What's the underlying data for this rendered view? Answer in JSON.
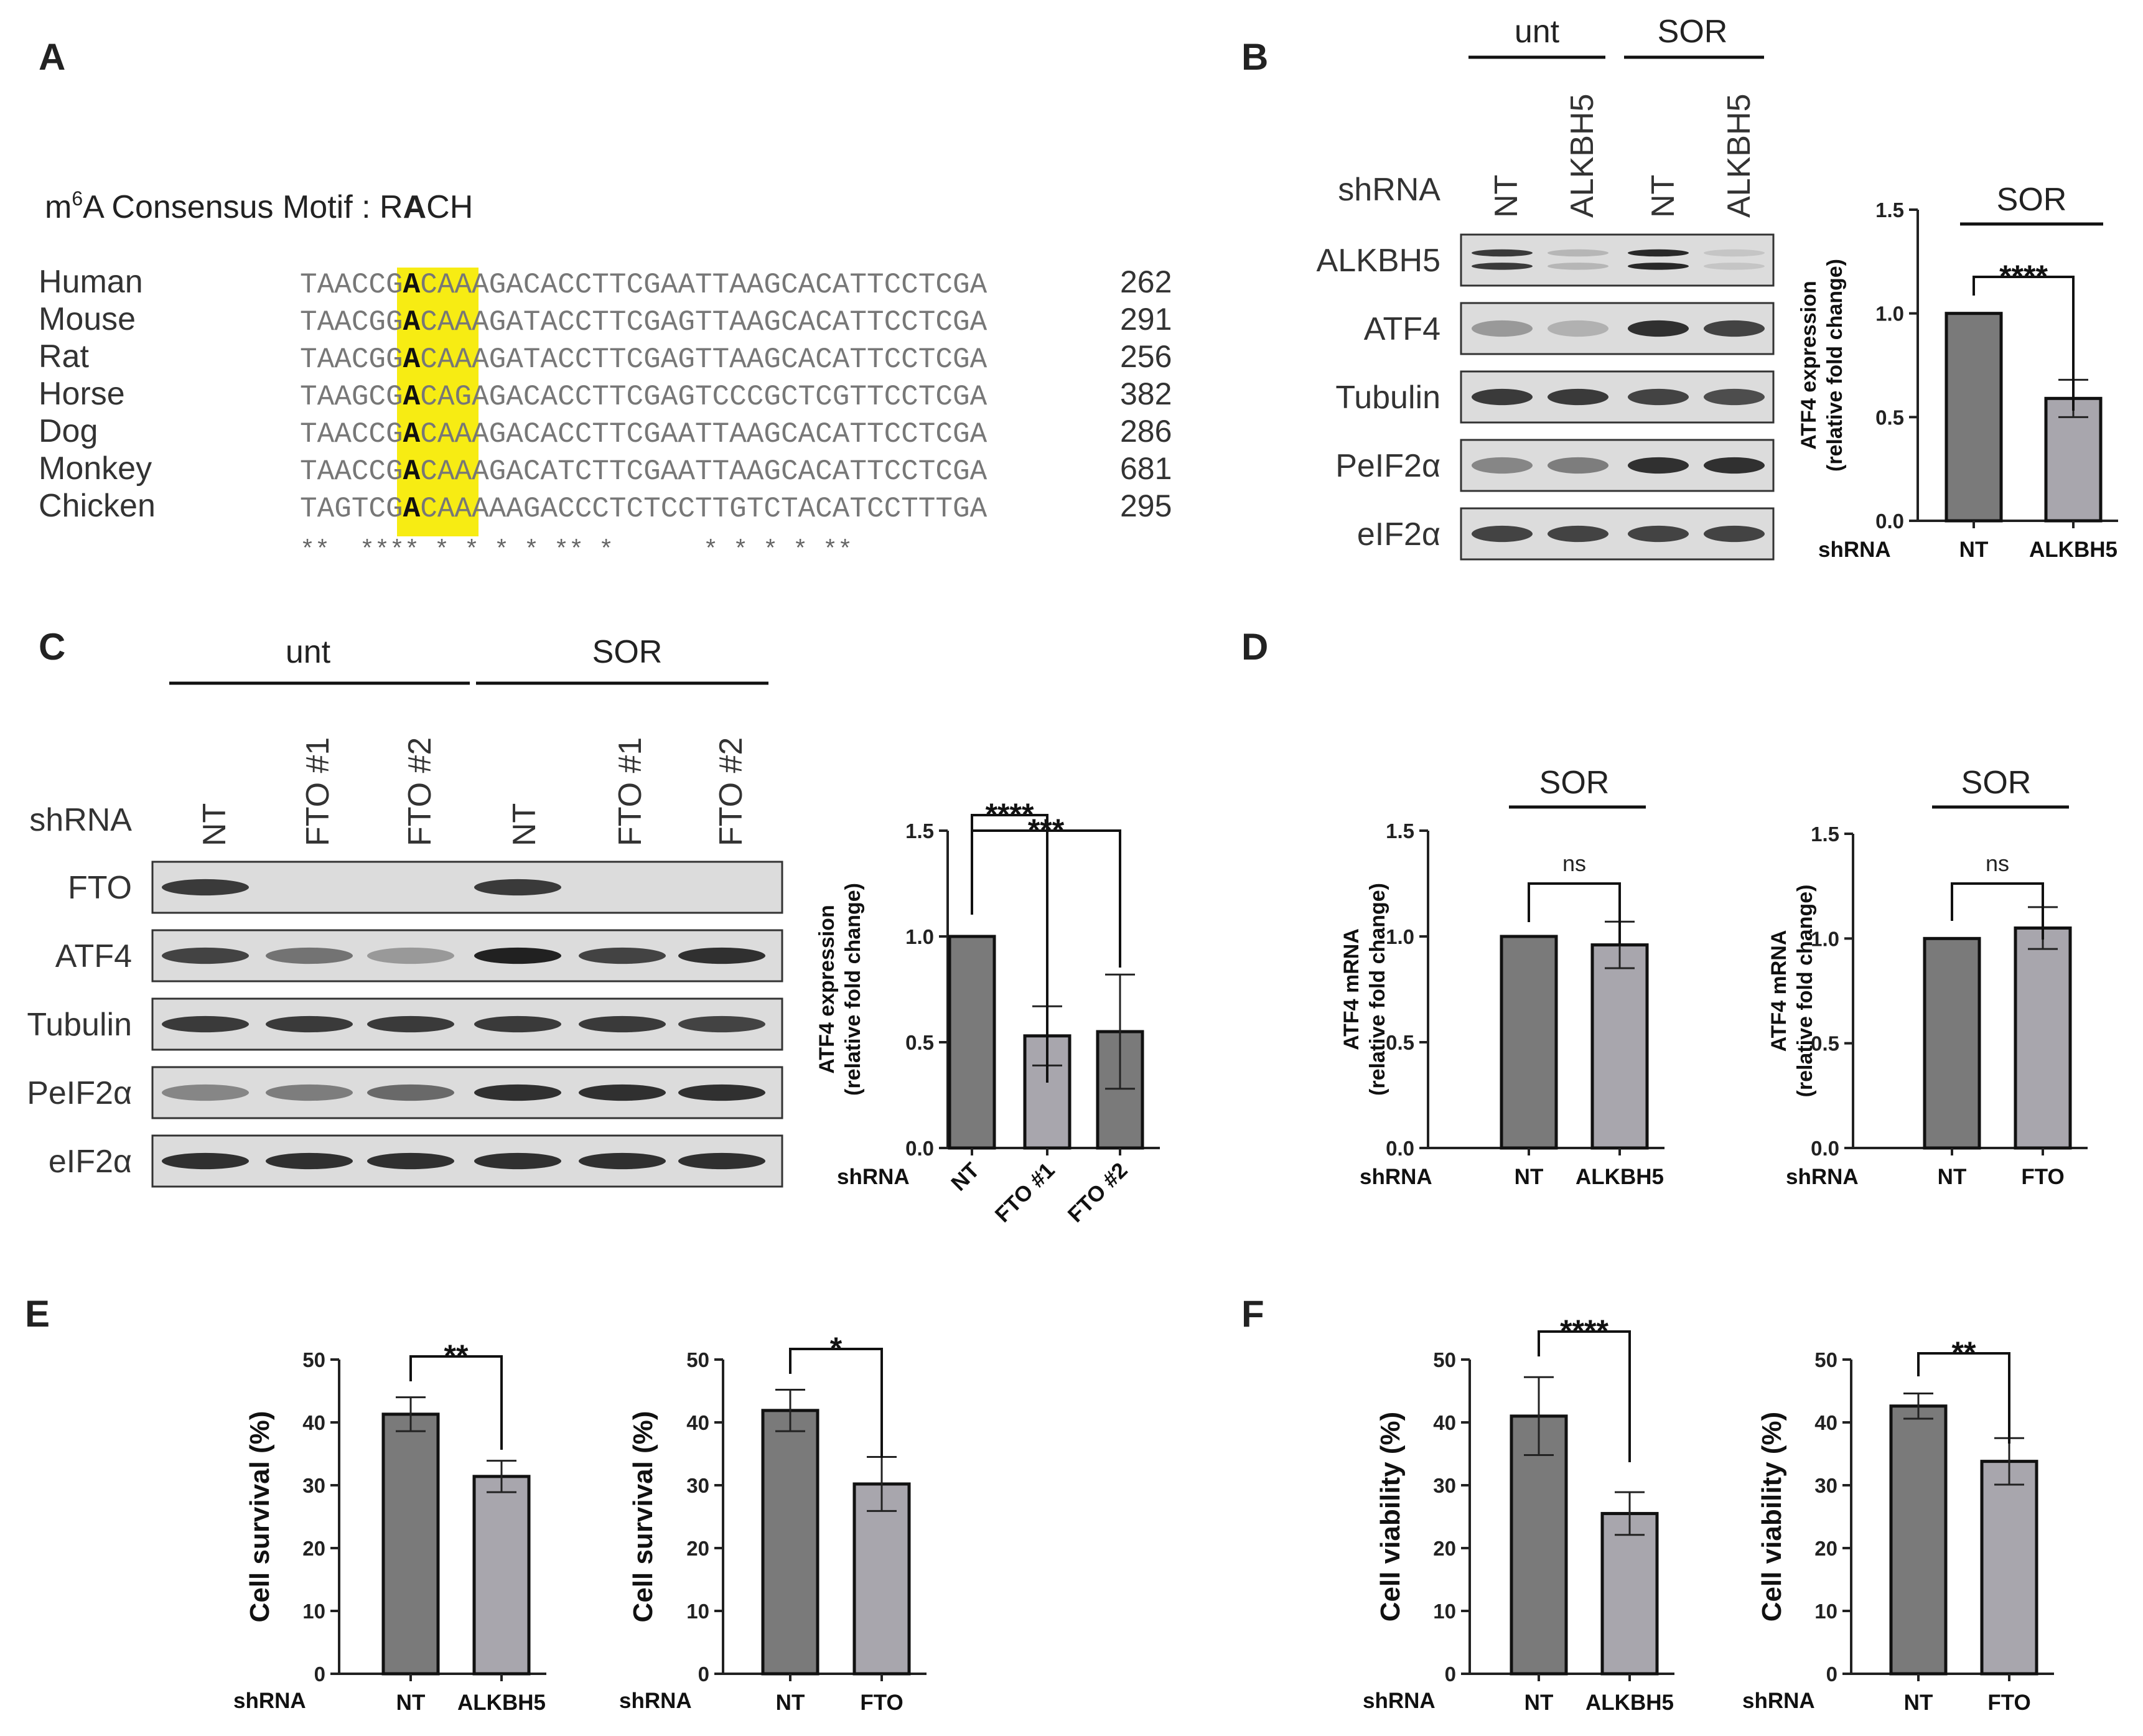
{
  "panels": {
    "A": {
      "label": "A",
      "motif_prefix": "m",
      "motif_sup": "6",
      "motif_mid": "A Consensus Motif : R",
      "motif_bold": "A",
      "motif_suffix": "CH",
      "rows": [
        {
          "species": "Human",
          "left": "TAACC",
          "hl_pre": "G",
          "hl_A": "A",
          "hl_post": "CA",
          "right": "AAGACACCTTCGAATTAAGCACATTCCTCGA",
          "num": "262"
        },
        {
          "species": "Mouse",
          "left": "TAACG",
          "hl_pre": "G",
          "hl_A": "A",
          "hl_post": "CA",
          "right": "AAGATACCTTCGAGTTAAGCACATTCCTCGA",
          "num": "291"
        },
        {
          "species": "Rat",
          "left": "TAACG",
          "hl_pre": "G",
          "hl_A": "A",
          "hl_post": "CA",
          "right": "AAGATACCTTCGAGTTAAGCACATTCCTCGA",
          "num": "256"
        },
        {
          "species": "Horse",
          "left": "TAAGC",
          "hl_pre": "G",
          "hl_A": "A",
          "hl_post": "CA",
          "right": "GAGACACCTTCGAGTCCCGCTCGTTCCTCGA",
          "num": "382"
        },
        {
          "species": "Dog",
          "left": "TAACC",
          "hl_pre": "G",
          "hl_A": "A",
          "hl_post": "CA",
          "right": "AAGACACCTTCGAATTAAGCACATTCCTCGA",
          "num": "286"
        },
        {
          "species": "Monkey",
          "left": "TAACC",
          "hl_pre": "G",
          "hl_A": "A",
          "hl_post": "CA",
          "right": "AAGACATCTTCGAATTAAGCACATTCCTCGA",
          "num": "681"
        },
        {
          "species": "Chicken",
          "left": "TAGTC",
          "hl_pre": "G",
          "hl_A": "A",
          "hl_post": "CA",
          "right": "AAAAGACCCTCTCCTTGTCTACATCCTTTGA",
          "num": "295"
        }
      ],
      "conservation": "**  **** * * * * ** *      * * * * **",
      "highlight_color": "#f7ec13"
    },
    "B": {
      "label": "B",
      "group_unt": "unt",
      "group_sor": "SOR",
      "shrna_label": "shRNA",
      "lanes": [
        "NT",
        "ALKBH5",
        "NT",
        "ALKBH5"
      ],
      "blots": [
        "ALKBH5",
        "ATF4",
        "Tubulin",
        "PeIF2α",
        "eIF2α"
      ]
    },
    "C": {
      "label": "C",
      "group_unt": "unt",
      "group_sor": "SOR",
      "shrna_label": "shRNA",
      "lanes": [
        "NT",
        "FTO #1",
        "FTO #2",
        "NT",
        "FTO #1",
        "FTO #2"
      ],
      "blots": [
        "FTO",
        "ATF4",
        "Tubulin",
        "PeIF2α",
        "eIF2α"
      ]
    },
    "D": {
      "label": "D"
    },
    "E": {
      "label": "E"
    },
    "F": {
      "label": "F"
    }
  },
  "chart_data": [
    {
      "id": "B-chart",
      "panel": "B",
      "type": "bar",
      "categories": [
        "NT",
        "ALKBH5"
      ],
      "values": [
        1.0,
        0.59
      ],
      "errors": [
        0,
        0.09
      ],
      "ylim": [
        0,
        1.5
      ],
      "yticks": [
        "0.0",
        "0.5",
        "1.0",
        "1.5"
      ],
      "ylabel_lines": [
        "ATF4 expression",
        "(relative fold change)"
      ],
      "xlabel": "shRNA",
      "group_label": "SOR",
      "significance": [
        {
          "from": 0,
          "to": 1,
          "label": "****"
        }
      ],
      "colors": [
        "#7a7a7a",
        "#a8a6ad"
      ]
    },
    {
      "id": "C-chart",
      "panel": "C",
      "type": "bar",
      "categories": [
        "NT",
        "FTO #1",
        "FTO #2"
      ],
      "values": [
        1.0,
        0.53,
        0.55
      ],
      "errors": [
        0,
        0.14,
        0.27
      ],
      "ylim": [
        0,
        1.5
      ],
      "yticks": [
        "0.0",
        "0.5",
        "1.0",
        "1.5"
      ],
      "ylabel_lines": [
        "ATF4 expression",
        "(relative fold change)"
      ],
      "xlabel": "shRNA",
      "significance": [
        {
          "from": 0,
          "to": 1,
          "label": "****"
        },
        {
          "from": 0,
          "to": 2,
          "label": "***"
        }
      ],
      "colors": [
        "#7a7a7a",
        "#a8a6ad",
        "#7a7a7a"
      ]
    },
    {
      "id": "D1-chart",
      "panel": "D",
      "type": "bar",
      "categories": [
        "NT",
        "ALKBH5"
      ],
      "values": [
        1.0,
        0.96
      ],
      "errors": [
        0,
        0.11
      ],
      "ylim": [
        0,
        1.5
      ],
      "yticks": [
        "0.0",
        "0.5",
        "1.0",
        "1.5"
      ],
      "ylabel_lines": [
        "ATF4 mRNA",
        "(relative fold change)"
      ],
      "xlabel": "shRNA",
      "group_label": "SOR",
      "significance": [
        {
          "from": 0,
          "to": 1,
          "label": "ns"
        }
      ],
      "colors": [
        "#7a7a7a",
        "#a8a6ad"
      ]
    },
    {
      "id": "D2-chart",
      "panel": "D",
      "type": "bar",
      "categories": [
        "NT",
        "FTO"
      ],
      "values": [
        1.0,
        1.05
      ],
      "errors": [
        0,
        0.1
      ],
      "ylim": [
        0,
        1.5
      ],
      "yticks": [
        "0.0",
        "0.5",
        "1.0",
        "1.5"
      ],
      "ylabel_lines": [
        "ATF4 mRNA",
        "(relative fold change)"
      ],
      "xlabel": "shRNA",
      "group_label": "SOR",
      "significance": [
        {
          "from": 0,
          "to": 1,
          "label": "ns"
        }
      ],
      "colors": [
        "#7a7a7a",
        "#a8a6ad"
      ]
    },
    {
      "id": "E1-chart",
      "panel": "E",
      "type": "bar",
      "categories": [
        "NT",
        "ALKBH5"
      ],
      "values": [
        41.3,
        31.4
      ],
      "errors": [
        2.7,
        2.5
      ],
      "ylim": [
        0,
        50
      ],
      "yticks": [
        "0",
        "10",
        "20",
        "30",
        "40",
        "50"
      ],
      "ylabel_lines": [
        "Cell survival (%)"
      ],
      "xlabel": "shRNA",
      "significance": [
        {
          "from": 0,
          "to": 1,
          "label": "**"
        }
      ],
      "colors": [
        "#7a7a7a",
        "#a8a6ad"
      ]
    },
    {
      "id": "E2-chart",
      "panel": "E",
      "type": "bar",
      "categories": [
        "NT",
        "FTO"
      ],
      "values": [
        41.9,
        30.2
      ],
      "errors": [
        3.3,
        4.3
      ],
      "ylim": [
        0,
        50
      ],
      "yticks": [
        "0",
        "10",
        "20",
        "30",
        "40",
        "50"
      ],
      "ylabel_lines": [
        "Cell survival (%)"
      ],
      "xlabel": "shRNA",
      "significance": [
        {
          "from": 0,
          "to": 1,
          "label": "*"
        }
      ],
      "colors": [
        "#7a7a7a",
        "#a8a6ad"
      ]
    },
    {
      "id": "F1-chart",
      "panel": "F",
      "type": "bar",
      "categories": [
        "NT",
        "ALKBH5"
      ],
      "values": [
        41.0,
        25.5
      ],
      "errors": [
        6.2,
        3.4
      ],
      "ylim": [
        0,
        50
      ],
      "yticks": [
        "0",
        "10",
        "20",
        "30",
        "40",
        "50"
      ],
      "ylabel_lines": [
        "Cell viability (%)"
      ],
      "xlabel": "shRNA",
      "significance": [
        {
          "from": 0,
          "to": 1,
          "label": "****"
        }
      ],
      "colors": [
        "#7a7a7a",
        "#a8a6ad"
      ]
    },
    {
      "id": "F2-chart",
      "panel": "F",
      "type": "bar",
      "categories": [
        "NT",
        "FTO"
      ],
      "values": [
        42.6,
        33.8
      ],
      "errors": [
        2.0,
        3.7
      ],
      "ylim": [
        0,
        50
      ],
      "yticks": [
        "0",
        "10",
        "20",
        "30",
        "40",
        "50"
      ],
      "ylabel_lines": [
        "Cell viability (%)"
      ],
      "xlabel": "shRNA",
      "significance": [
        {
          "from": 0,
          "to": 1,
          "label": "**"
        }
      ],
      "colors": [
        "#7a7a7a",
        "#a8a6ad"
      ]
    }
  ]
}
